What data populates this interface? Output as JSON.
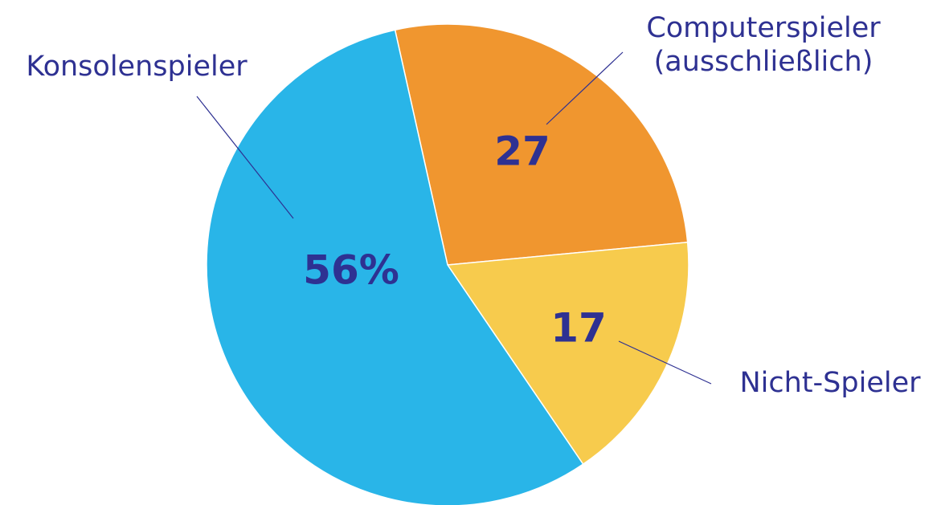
{
  "chart_data": {
    "type": "pie",
    "categories": [
      "Computerspieler (ausschließlich)",
      "Nicht-Spieler",
      "Konsolenspieler"
    ],
    "values": [
      27,
      17,
      56
    ],
    "value_labels": [
      "27",
      "17",
      "56%"
    ],
    "colors": [
      "#f0962f",
      "#f7cb4d",
      "#29b5e8"
    ]
  }
}
